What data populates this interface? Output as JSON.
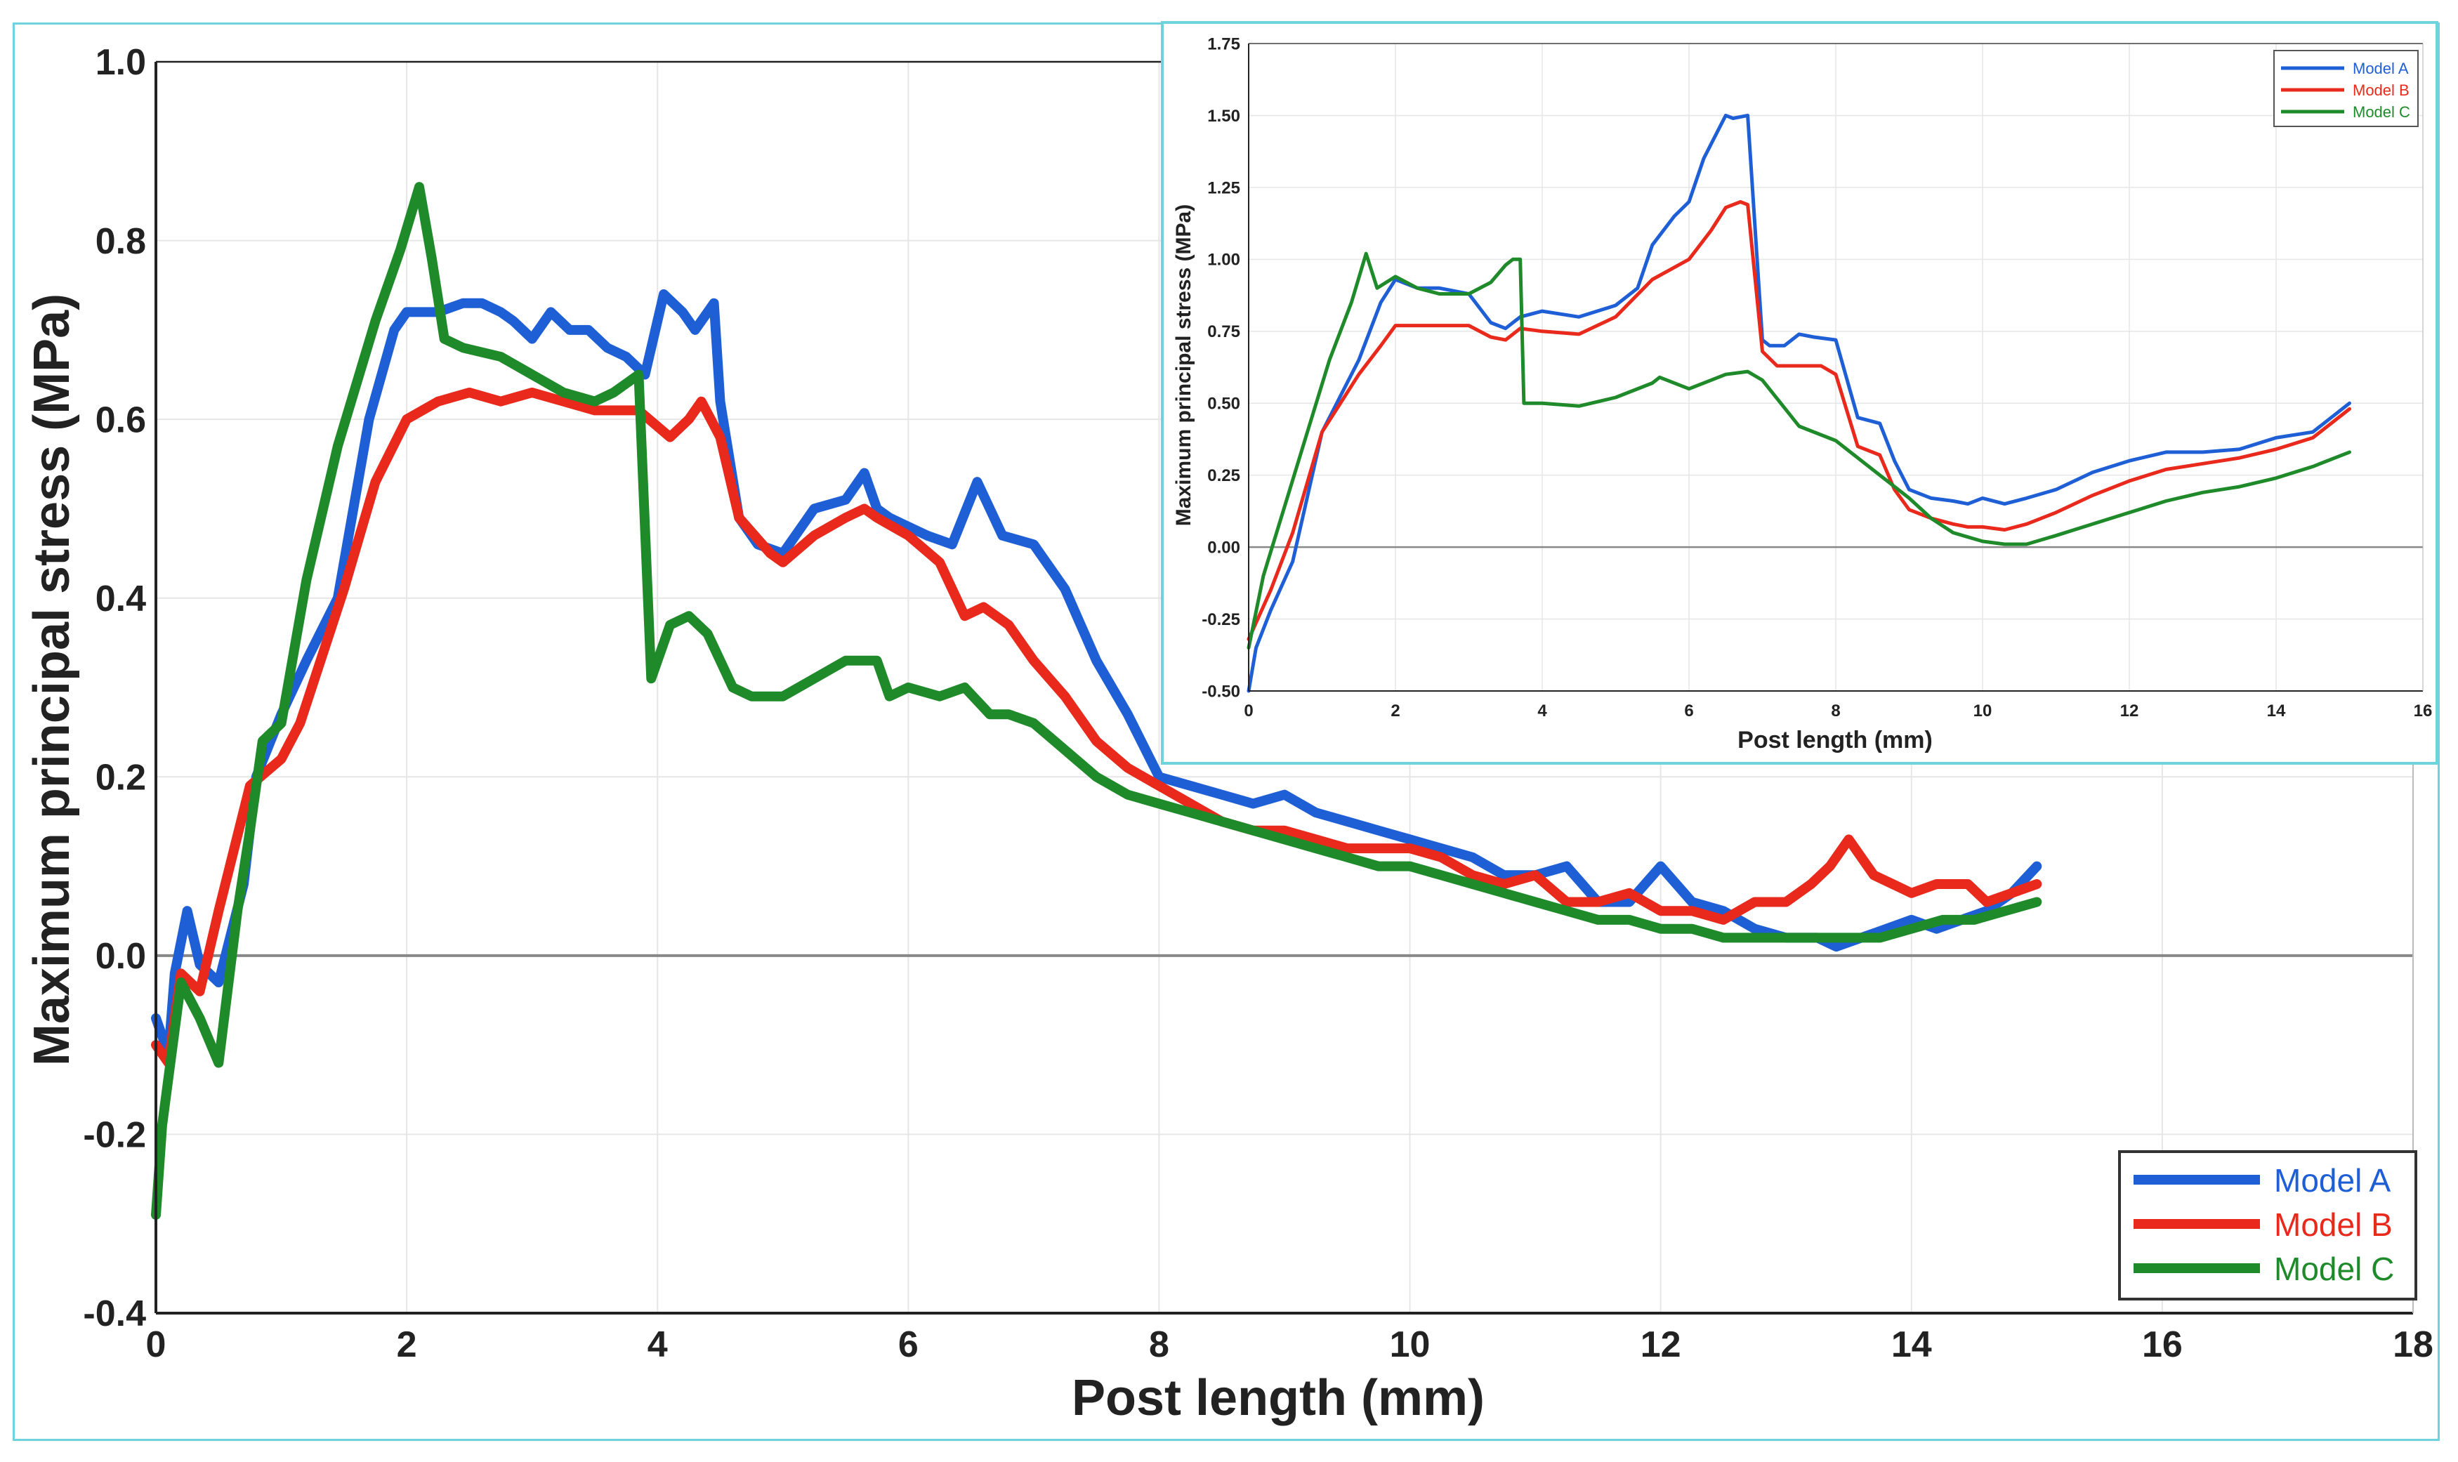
{
  "colors": {
    "model_a": "#1f5fd6",
    "model_b": "#e8291c",
    "model_c": "#1f8a2a",
    "axis": "#222222",
    "grid": "#e6e6e6",
    "zero": "#888888",
    "frame": "#6fd3dc"
  },
  "chart_data": [
    {
      "type": "line",
      "title": "",
      "xlabel": "Post length (mm)",
      "ylabel": "Maximum principal stress (MPa)",
      "xlim": [
        0,
        18
      ],
      "ylim": [
        -0.4,
        1.0
      ],
      "xticks": [
        "0",
        "2",
        "4",
        "6",
        "8",
        "10",
        "12",
        "14",
        "16",
        "18"
      ],
      "yticks": [
        "-0.4",
        "-0.2",
        "0.0",
        "0.2",
        "0.4",
        "0.6",
        "0.8",
        "1.0"
      ],
      "legend": [
        "Model A",
        "Model B",
        "Model C"
      ],
      "legend_position": "bottom-right",
      "series": [
        {
          "name": "Model A",
          "color": "#1f5fd6",
          "x": [
            0,
            0.1,
            0.15,
            0.25,
            0.35,
            0.5,
            0.7,
            0.8,
            1.0,
            1.2,
            1.45,
            1.7,
            1.9,
            2.0,
            2.25,
            2.45,
            2.6,
            2.75,
            2.85,
            3.0,
            3.15,
            3.3,
            3.45,
            3.6,
            3.75,
            3.9,
            4.05,
            4.2,
            4.3,
            4.45,
            4.5,
            4.65,
            4.8,
            5.0,
            5.25,
            5.5,
            5.65,
            5.75,
            5.85,
            6.0,
            6.15,
            6.35,
            6.55,
            6.75,
            7.0,
            7.25,
            7.5,
            7.75,
            8.0,
            8.25,
            8.5,
            8.75,
            9.0,
            9.25,
            9.5,
            9.75,
            10.0,
            10.25,
            10.5,
            10.75,
            11.0,
            11.25,
            11.5,
            11.75,
            12.0,
            12.25,
            12.5,
            12.75,
            13.0,
            13.25,
            13.4,
            13.6,
            13.8,
            14.0,
            14.2,
            14.4,
            14.6,
            14.8,
            15.0
          ],
          "y": [
            -0.07,
            -0.11,
            -0.02,
            0.05,
            -0.01,
            -0.03,
            0.08,
            0.2,
            0.27,
            0.33,
            0.4,
            0.6,
            0.7,
            0.72,
            0.72,
            0.73,
            0.73,
            0.72,
            0.71,
            0.69,
            0.72,
            0.7,
            0.7,
            0.68,
            0.67,
            0.65,
            0.74,
            0.72,
            0.7,
            0.73,
            0.62,
            0.49,
            0.46,
            0.45,
            0.5,
            0.51,
            0.54,
            0.5,
            0.49,
            0.48,
            0.47,
            0.46,
            0.53,
            0.47,
            0.46,
            0.41,
            0.33,
            0.27,
            0.2,
            0.19,
            0.18,
            0.17,
            0.18,
            0.16,
            0.15,
            0.14,
            0.13,
            0.12,
            0.11,
            0.09,
            0.09,
            0.1,
            0.06,
            0.06,
            0.1,
            0.06,
            0.05,
            0.03,
            0.02,
            0.02,
            0.01,
            0.02,
            0.03,
            0.04,
            0.03,
            0.04,
            0.05,
            0.07,
            0.1
          ]
        },
        {
          "name": "Model B",
          "color": "#e8291c",
          "x": [
            0,
            0.1,
            0.2,
            0.35,
            0.5,
            0.75,
            1.0,
            1.15,
            1.5,
            1.75,
            2.0,
            2.25,
            2.5,
            2.75,
            3.0,
            3.25,
            3.5,
            3.75,
            3.85,
            4.1,
            4.25,
            4.35,
            4.5,
            4.65,
            4.9,
            5.0,
            5.25,
            5.5,
            5.65,
            5.75,
            6.0,
            6.25,
            6.45,
            6.6,
            6.8,
            7.0,
            7.25,
            7.5,
            7.75,
            8.0,
            8.25,
            8.5,
            8.75,
            9.0,
            9.25,
            9.5,
            9.75,
            10.0,
            10.25,
            10.5,
            10.75,
            11.0,
            11.25,
            11.5,
            11.75,
            12.0,
            12.25,
            12.5,
            12.75,
            13.0,
            13.2,
            13.35,
            13.5,
            13.7,
            13.85,
            14.0,
            14.2,
            14.45,
            14.6,
            14.8,
            15.0
          ],
          "y": [
            -0.1,
            -0.12,
            -0.02,
            -0.04,
            0.05,
            0.19,
            0.22,
            0.26,
            0.41,
            0.53,
            0.6,
            0.62,
            0.63,
            0.62,
            0.63,
            0.62,
            0.61,
            0.61,
            0.61,
            0.58,
            0.6,
            0.62,
            0.58,
            0.49,
            0.45,
            0.44,
            0.47,
            0.49,
            0.5,
            0.49,
            0.47,
            0.44,
            0.38,
            0.39,
            0.37,
            0.33,
            0.29,
            0.24,
            0.21,
            0.19,
            0.17,
            0.15,
            0.14,
            0.14,
            0.13,
            0.12,
            0.12,
            0.12,
            0.11,
            0.09,
            0.08,
            0.09,
            0.06,
            0.06,
            0.07,
            0.05,
            0.05,
            0.04,
            0.06,
            0.06,
            0.08,
            0.1,
            0.13,
            0.09,
            0.08,
            0.07,
            0.08,
            0.08,
            0.06,
            0.07,
            0.08
          ]
        },
        {
          "name": "Model C",
          "color": "#1f8a2a",
          "x": [
            0,
            0.05,
            0.2,
            0.35,
            0.5,
            0.65,
            0.75,
            0.85,
            1.0,
            1.2,
            1.45,
            1.75,
            1.95,
            2.1,
            2.2,
            2.3,
            2.45,
            2.75,
            3.0,
            3.25,
            3.5,
            3.65,
            3.85,
            3.95,
            4.1,
            4.25,
            4.4,
            4.6,
            4.75,
            5.0,
            5.25,
            5.5,
            5.75,
            5.85,
            6.0,
            6.25,
            6.45,
            6.65,
            6.8,
            7.0,
            7.25,
            7.5,
            7.75,
            8.0,
            8.25,
            8.5,
            8.75,
            9.0,
            9.25,
            9.5,
            9.75,
            10.0,
            10.25,
            10.5,
            10.75,
            11.0,
            11.25,
            11.5,
            11.75,
            12.0,
            12.25,
            12.5,
            12.75,
            13.0,
            13.25,
            13.5,
            13.75,
            14.0,
            14.25,
            14.5,
            14.75,
            15.0
          ],
          "y": [
            -0.29,
            -0.19,
            -0.03,
            -0.07,
            -0.12,
            0.05,
            0.14,
            0.24,
            0.26,
            0.42,
            0.57,
            0.71,
            0.79,
            0.86,
            0.78,
            0.69,
            0.68,
            0.67,
            0.65,
            0.63,
            0.62,
            0.63,
            0.65,
            0.31,
            0.37,
            0.38,
            0.36,
            0.3,
            0.29,
            0.29,
            0.31,
            0.33,
            0.33,
            0.29,
            0.3,
            0.29,
            0.3,
            0.27,
            0.27,
            0.26,
            0.23,
            0.2,
            0.18,
            0.17,
            0.16,
            0.15,
            0.14,
            0.13,
            0.12,
            0.11,
            0.1,
            0.1,
            0.09,
            0.08,
            0.07,
            0.06,
            0.05,
            0.04,
            0.04,
            0.03,
            0.03,
            0.02,
            0.02,
            0.02,
            0.02,
            0.02,
            0.02,
            0.03,
            0.04,
            0.04,
            0.05,
            0.06
          ]
        }
      ]
    },
    {
      "type": "line",
      "title": "",
      "inset": true,
      "xlabel": "Post length (mm)",
      "ylabel": "Maximum principal stress (MPa)",
      "xlim": [
        0,
        16
      ],
      "ylim": [
        -0.5,
        1.75
      ],
      "xticks": [
        "0",
        "2",
        "4",
        "6",
        "8",
        "10",
        "12",
        "14",
        "16"
      ],
      "yticks": [
        "-0.50",
        "-0.25",
        "0.00",
        "0.25",
        "0.50",
        "0.75",
        "1.00",
        "1.25",
        "1.50",
        "1.75"
      ],
      "legend": [
        "Model A",
        "Model B",
        "Model C"
      ],
      "legend_position": "top-right",
      "series": [
        {
          "name": "Model A",
          "color": "#1f5fd6",
          "x": [
            0,
            0.1,
            0.3,
            0.6,
            1.0,
            1.5,
            1.8,
            2.0,
            2.3,
            2.6,
            3.0,
            3.3,
            3.5,
            3.7,
            4.0,
            4.5,
            5.0,
            5.3,
            5.5,
            5.8,
            6.0,
            6.2,
            6.4,
            6.5,
            6.6,
            6.8,
            7.0,
            7.1,
            7.3,
            7.5,
            7.7,
            8.0,
            8.3,
            8.6,
            8.8,
            9.0,
            9.3,
            9.6,
            9.8,
            10.0,
            10.3,
            10.6,
            11.0,
            11.5,
            12.0,
            12.5,
            13.0,
            13.5,
            14.0,
            14.5,
            15.0
          ],
          "y": [
            -0.5,
            -0.35,
            -0.22,
            -0.05,
            0.4,
            0.65,
            0.85,
            0.93,
            0.9,
            0.9,
            0.88,
            0.78,
            0.76,
            0.8,
            0.82,
            0.8,
            0.84,
            0.9,
            1.05,
            1.15,
            1.2,
            1.35,
            1.45,
            1.5,
            1.49,
            1.5,
            0.72,
            0.7,
            0.7,
            0.74,
            0.73,
            0.72,
            0.45,
            0.43,
            0.3,
            0.2,
            0.17,
            0.16,
            0.15,
            0.17,
            0.15,
            0.17,
            0.2,
            0.26,
            0.3,
            0.33,
            0.33,
            0.34,
            0.38,
            0.4,
            0.5
          ]
        },
        {
          "name": "Model B",
          "color": "#e8291c",
          "x": [
            0,
            0.3,
            0.6,
            1.0,
            1.5,
            1.8,
            2.0,
            2.5,
            3.0,
            3.3,
            3.5,
            3.7,
            4.0,
            4.5,
            5.0,
            5.5,
            6.0,
            6.3,
            6.5,
            6.7,
            6.8,
            7.0,
            7.2,
            7.5,
            7.8,
            8.0,
            8.3,
            8.6,
            8.8,
            9.0,
            9.3,
            9.6,
            9.8,
            10.0,
            10.3,
            10.6,
            11.0,
            11.5,
            12.0,
            12.5,
            13.0,
            13.5,
            14.0,
            14.5,
            15.0
          ],
          "y": [
            -0.32,
            -0.15,
            0.05,
            0.4,
            0.6,
            0.7,
            0.77,
            0.77,
            0.77,
            0.73,
            0.72,
            0.76,
            0.75,
            0.74,
            0.8,
            0.93,
            1.0,
            1.1,
            1.18,
            1.2,
            1.19,
            0.68,
            0.63,
            0.63,
            0.63,
            0.6,
            0.35,
            0.32,
            0.2,
            0.13,
            0.1,
            0.08,
            0.07,
            0.07,
            0.06,
            0.08,
            0.12,
            0.18,
            0.23,
            0.27,
            0.29,
            0.31,
            0.34,
            0.38,
            0.48
          ]
        },
        {
          "name": "Model C",
          "color": "#1f8a2a",
          "x": [
            0,
            0.2,
            0.5,
            0.8,
            1.1,
            1.4,
            1.6,
            1.75,
            2.0,
            2.3,
            2.6,
            3.0,
            3.3,
            3.5,
            3.6,
            3.7,
            3.75,
            4.0,
            4.5,
            5.0,
            5.5,
            5.6,
            6.0,
            6.5,
            6.8,
            7.0,
            7.5,
            8.0,
            8.5,
            9.0,
            9.3,
            9.6,
            10.0,
            10.3,
            10.6,
            11.0,
            11.5,
            12.0,
            12.5,
            13.0,
            13.5,
            14.0,
            14.5,
            15.0
          ],
          "y": [
            -0.35,
            -0.1,
            0.15,
            0.4,
            0.65,
            0.85,
            1.02,
            0.9,
            0.94,
            0.9,
            0.88,
            0.88,
            0.92,
            0.98,
            1.0,
            1.0,
            0.5,
            0.5,
            0.49,
            0.52,
            0.57,
            0.59,
            0.55,
            0.6,
            0.61,
            0.58,
            0.42,
            0.37,
            0.27,
            0.17,
            0.1,
            0.05,
            0.02,
            0.01,
            0.01,
            0.04,
            0.08,
            0.12,
            0.16,
            0.19,
            0.21,
            0.24,
            0.28,
            0.33
          ]
        }
      ]
    }
  ]
}
